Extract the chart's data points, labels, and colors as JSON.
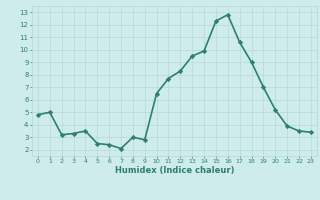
{
  "x": [
    0,
    1,
    2,
    3,
    4,
    5,
    6,
    7,
    8,
    9,
    10,
    11,
    12,
    13,
    14,
    15,
    16,
    17,
    18,
    19,
    20,
    21,
    22,
    23
  ],
  "y": [
    4.8,
    5.0,
    3.2,
    3.3,
    3.5,
    2.5,
    2.4,
    2.1,
    3.0,
    2.8,
    6.5,
    7.7,
    8.3,
    9.5,
    9.9,
    12.3,
    12.8,
    10.6,
    9.0,
    7.0,
    5.2,
    3.9,
    3.5,
    3.4
  ],
  "line_color": "#2e7f6e",
  "marker": "D",
  "marker_size": 2.2,
  "bg_color": "#cdecea",
  "grid_color": "#b8d8d5",
  "xlabel": "Humidex (Indice chaleur)",
  "xlim": [
    -0.5,
    23.5
  ],
  "ylim": [
    1.5,
    13.5
  ],
  "yticks": [
    2,
    3,
    4,
    5,
    6,
    7,
    8,
    9,
    10,
    11,
    12,
    13
  ],
  "xticks": [
    0,
    1,
    2,
    3,
    4,
    5,
    6,
    7,
    8,
    9,
    10,
    11,
    12,
    13,
    14,
    15,
    16,
    17,
    18,
    19,
    20,
    21,
    22,
    23
  ],
  "font_color": "#2e7f6e",
  "linewidth": 1.2
}
